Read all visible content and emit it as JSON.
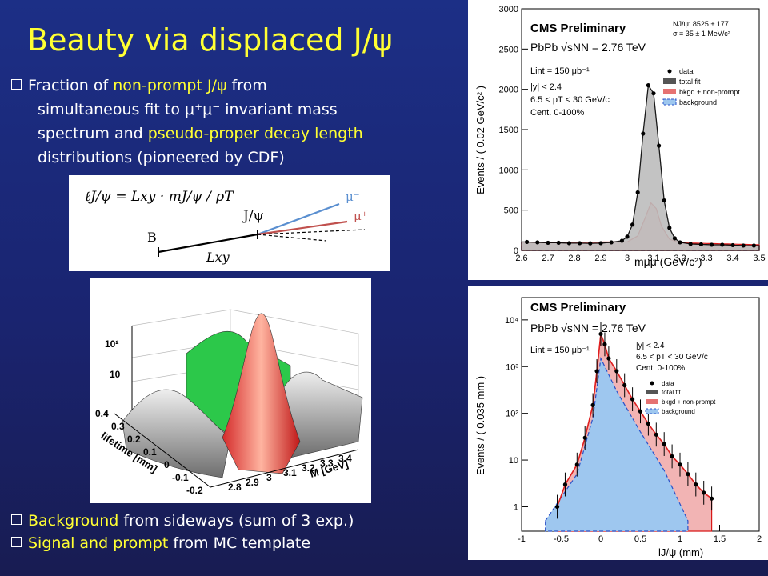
{
  "title": "Beauty via displaced J/ψ",
  "bullet1": {
    "l1a": "Fraction of ",
    "l1b": "non-prompt J/ψ",
    "l1c": " from",
    "l2": "simultaneous fit to μ⁺μ⁻ invariant mass",
    "l3a": "spectrum and ",
    "l3b": "pseudo-proper decay length",
    "l4": "distributions (pioneered by CDF)"
  },
  "bullet2": {
    "a": "Background",
    "b": " from sideways (sum of 3 exp.)"
  },
  "bullet3": {
    "a": "Signal and prompt",
    "b": " from MC template"
  },
  "diagram": {
    "formula": "ℓJ/ψ = Lxy · mJ/ψ / pT",
    "jpsi": "J/ψ",
    "b": "B",
    "lxy": "Lxy",
    "mu_minus": "μ⁻",
    "mu_plus": "μ⁺"
  },
  "plot3d": {
    "z_ticks": [
      "10²",
      "10"
    ],
    "lifetime_ticks": [
      "0.4",
      "0.3",
      "0.2",
      "0.1",
      "0",
      "-0.1",
      "-0.2"
    ],
    "lifetime_label": "lifetime [mm]",
    "m_ticks": [
      "2.8",
      "2.9",
      "3",
      "3.1",
      "3.2",
      "3.3",
      "3.4"
    ],
    "m_label": "M [GeV]"
  },
  "mass_plot": {
    "banner": "CMS Preliminary",
    "system": "PbPb √sNN = 2.76 TeV",
    "nj": "NJ/ψ: 8525 ± 177",
    "sigma": "σ = 35 ± 1 MeV/c²",
    "lumi": "Lint = 150 μb⁻¹",
    "y_cut": "|y| < 2.4",
    "pt_cut": "6.5 < pT < 30 GeV/c",
    "cent": "Cent. 0-100%",
    "ylabel": "Events / ( 0.02 GeV/c² )",
    "xlabel": "mμμ (GeV/c²)",
    "legend": [
      "data",
      "total fit",
      "bkgd + non-prompt",
      "background"
    ],
    "y_ticks": [
      "0",
      "500",
      "1000",
      "1500",
      "2000",
      "2500",
      "3000"
    ],
    "x_ticks": [
      "2.6",
      "2.7",
      "2.8",
      "2.9",
      "3",
      "3.1",
      "3.2",
      "3.3",
      "3.4",
      "3.5"
    ]
  },
  "lifetime_plot": {
    "banner": "CMS Preliminary",
    "system": "PbPb √sNN = 2.76 TeV",
    "lumi": "Lint = 150 μb⁻¹",
    "y_cut": "|y| < 2.4",
    "pt_cut": "6.5 < pT < 30 GeV/c",
    "cent": "Cent. 0-100%",
    "ylabel": "Events / ( 0.035 mm )",
    "xlabel": "lJ/ψ (mm)",
    "legend": [
      "data",
      "total fit",
      "bkgd + non-prompt",
      "background"
    ],
    "y_ticks": [
      "1",
      "10",
      "10²",
      "10³",
      "10⁴"
    ],
    "x_ticks": [
      "-1",
      "-0.5",
      "0",
      "0.5",
      "1",
      "1.5",
      "2"
    ]
  },
  "chart_data": [
    {
      "type": "line",
      "xlabel": "mμμ (GeV/c²)",
      "ylabel": "Events / ( 0.02 GeV/c² )",
      "xlim": [
        2.6,
        3.5
      ],
      "ylim": [
        0,
        3000
      ],
      "series": [
        {
          "name": "data",
          "x": [
            2.62,
            2.66,
            2.7,
            2.74,
            2.78,
            2.82,
            2.86,
            2.9,
            2.94,
            2.98,
            3.0,
            3.02,
            3.04,
            3.06,
            3.08,
            3.1,
            3.12,
            3.14,
            3.16,
            3.18,
            3.2,
            3.24,
            3.28,
            3.32,
            3.36,
            3.4,
            3.44,
            3.48
          ],
          "y": [
            105,
            100,
            95,
            95,
            90,
            90,
            88,
            90,
            100,
            120,
            170,
            320,
            720,
            1450,
            2050,
            1950,
            1300,
            620,
            280,
            150,
            100,
            80,
            75,
            70,
            70,
            65,
            60,
            60
          ]
        },
        {
          "name": "bkgd + non-prompt",
          "x": [
            2.6,
            3.0,
            3.04,
            3.07,
            3.09,
            3.11,
            3.13,
            3.16,
            3.2,
            3.5
          ],
          "y": [
            100,
            105,
            180,
            420,
            590,
            520,
            300,
            140,
            95,
            70
          ]
        },
        {
          "name": "background",
          "x": [
            2.6,
            3.5
          ],
          "y": [
            95,
            65
          ]
        }
      ]
    },
    {
      "type": "line",
      "xlabel": "lJ/ψ (mm)",
      "ylabel": "Events / ( 0.035 mm )",
      "xlim": [
        -1,
        2
      ],
      "ylim": [
        0.3,
        30000
      ],
      "series": [
        {
          "name": "data",
          "x": [
            -0.55,
            -0.45,
            -0.3,
            -0.2,
            -0.1,
            -0.05,
            0,
            0.05,
            0.1,
            0.2,
            0.3,
            0.4,
            0.5,
            0.6,
            0.7,
            0.8,
            0.9,
            1.0,
            1.1,
            1.2,
            1.3,
            1.4
          ],
          "y": [
            1,
            3,
            8,
            30,
            150,
            800,
            5000,
            3000,
            1500,
            800,
            400,
            200,
            110,
            60,
            35,
            22,
            12,
            8,
            5,
            3,
            2,
            1.5
          ]
        },
        {
          "name": "background",
          "x": [
            -0.7,
            -0.3,
            -0.1,
            0,
            0.2,
            0.5,
            0.8,
            1.1
          ],
          "y": [
            0.5,
            5,
            80,
            1500,
            300,
            40,
            6,
            0.5
          ]
        }
      ]
    }
  ]
}
